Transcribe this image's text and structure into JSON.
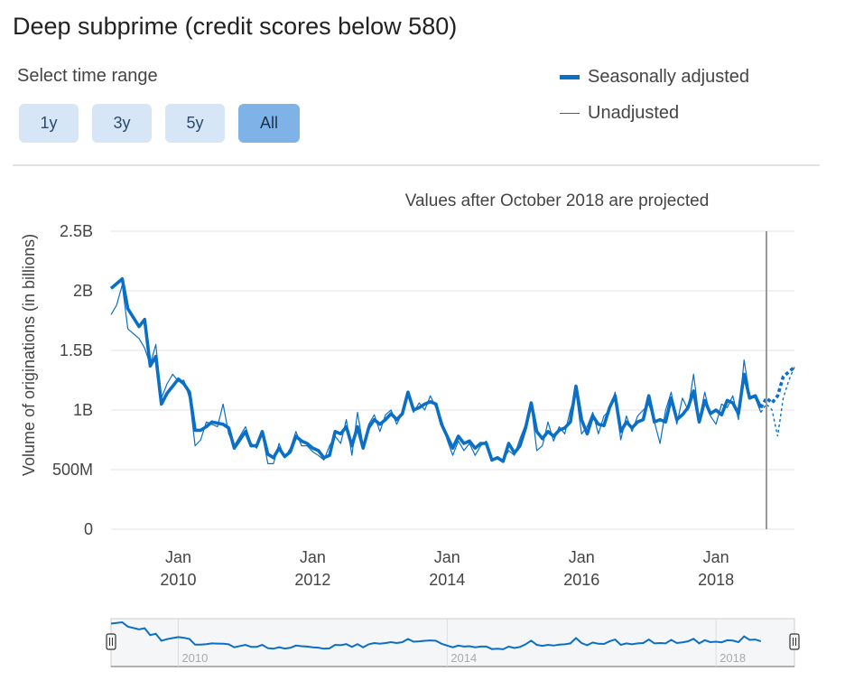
{
  "title": "Deep subprime (credit scores below 580)",
  "range_selector": {
    "label": "Select time range",
    "buttons": [
      "1y",
      "3y",
      "5y",
      "All"
    ],
    "active": "All"
  },
  "legend": {
    "seasonally_adjusted": "Seasonally adjusted",
    "unadjusted": "Unadjusted"
  },
  "note": "Values after October 2018 are projected",
  "colors": {
    "series": "#0b6fc6",
    "button": "#d6e6f7",
    "button_active": "#7fb3e8"
  },
  "chart_data": {
    "type": "line",
    "ylabel": "Volume of originations (in billions)",
    "ylim": [
      0,
      2.5
    ],
    "y_ticks": [
      {
        "value": 0,
        "label": "0"
      },
      {
        "value": 0.5,
        "label": "500M"
      },
      {
        "value": 1.0,
        "label": "1B"
      },
      {
        "value": 1.5,
        "label": "1.5B"
      },
      {
        "value": 2.0,
        "label": "2B"
      },
      {
        "value": 2.5,
        "label": "2.5B"
      }
    ],
    "x_ticks": [
      {
        "date": "2010-01",
        "month": "Jan",
        "year": "2010"
      },
      {
        "date": "2012-01",
        "month": "Jan",
        "year": "2012"
      },
      {
        "date": "2014-01",
        "month": "Jan",
        "year": "2014"
      },
      {
        "date": "2016-01",
        "month": "Jan",
        "year": "2016"
      },
      {
        "date": "2018-01",
        "month": "Jan",
        "year": "2018"
      }
    ],
    "xlim": [
      "2009-01",
      "2019-03"
    ],
    "projection_start": "2018-10",
    "navigator_labels": [
      "2010",
      "2014",
      "2018"
    ],
    "series": [
      {
        "name": "Seasonally adjusted",
        "points": [
          [
            "2009-01",
            2.02
          ],
          [
            "2009-03",
            2.1
          ],
          [
            "2009-04",
            1.85
          ],
          [
            "2009-06",
            1.7
          ],
          [
            "2009-07",
            1.76
          ],
          [
            "2009-08",
            1.37
          ],
          [
            "2009-09",
            1.45
          ],
          [
            "2009-10",
            1.05
          ],
          [
            "2009-11",
            1.14
          ],
          [
            "2009-12",
            1.2
          ],
          [
            "2010-01",
            1.26
          ],
          [
            "2010-02",
            1.22
          ],
          [
            "2010-03",
            1.15
          ],
          [
            "2010-04",
            0.83
          ],
          [
            "2010-05",
            0.83
          ],
          [
            "2010-06",
            0.86
          ],
          [
            "2010-07",
            0.9
          ],
          [
            "2010-08",
            0.89
          ],
          [
            "2010-09",
            0.88
          ],
          [
            "2010-10",
            0.85
          ],
          [
            "2010-11",
            0.68
          ],
          [
            "2010-12",
            0.75
          ],
          [
            "2011-01",
            0.82
          ],
          [
            "2011-02",
            0.7
          ],
          [
            "2011-03",
            0.7
          ],
          [
            "2011-04",
            0.82
          ],
          [
            "2011-05",
            0.63
          ],
          [
            "2011-06",
            0.6
          ],
          [
            "2011-07",
            0.68
          ],
          [
            "2011-08",
            0.61
          ],
          [
            "2011-09",
            0.65
          ],
          [
            "2011-10",
            0.78
          ],
          [
            "2011-11",
            0.74
          ],
          [
            "2011-12",
            0.72
          ],
          [
            "2012-01",
            0.68
          ],
          [
            "2012-02",
            0.66
          ],
          [
            "2012-03",
            0.6
          ],
          [
            "2012-04",
            0.62
          ],
          [
            "2012-05",
            0.82
          ],
          [
            "2012-06",
            0.8
          ],
          [
            "2012-07",
            0.86
          ],
          [
            "2012-08",
            0.7
          ],
          [
            "2012-09",
            0.86
          ],
          [
            "2012-10",
            0.68
          ],
          [
            "2012-11",
            0.85
          ],
          [
            "2012-12",
            0.92
          ],
          [
            "2013-01",
            0.88
          ],
          [
            "2013-02",
            0.92
          ],
          [
            "2013-03",
            0.97
          ],
          [
            "2013-04",
            0.92
          ],
          [
            "2013-05",
            0.97
          ],
          [
            "2013-06",
            1.15
          ],
          [
            "2013-07",
            1.0
          ],
          [
            "2013-08",
            1.02
          ],
          [
            "2013-09",
            1.05
          ],
          [
            "2013-10",
            1.07
          ],
          [
            "2013-11",
            1.05
          ],
          [
            "2013-12",
            0.88
          ],
          [
            "2014-01",
            0.78
          ],
          [
            "2014-02",
            0.68
          ],
          [
            "2014-03",
            0.78
          ],
          [
            "2014-04",
            0.72
          ],
          [
            "2014-05",
            0.74
          ],
          [
            "2014-06",
            0.68
          ],
          [
            "2014-07",
            0.72
          ],
          [
            "2014-08",
            0.72
          ],
          [
            "2014-09",
            0.58
          ],
          [
            "2014-10",
            0.6
          ],
          [
            "2014-11",
            0.57
          ],
          [
            "2014-12",
            0.72
          ],
          [
            "2015-01",
            0.64
          ],
          [
            "2015-02",
            0.7
          ],
          [
            "2015-03",
            0.85
          ],
          [
            "2015-04",
            1.06
          ],
          [
            "2015-05",
            0.82
          ],
          [
            "2015-06",
            0.76
          ],
          [
            "2015-07",
            0.82
          ],
          [
            "2015-08",
            0.78
          ],
          [
            "2015-09",
            0.83
          ],
          [
            "2015-10",
            0.85
          ],
          [
            "2015-11",
            0.9
          ],
          [
            "2015-12",
            1.2
          ],
          [
            "2016-01",
            0.92
          ],
          [
            "2016-02",
            0.8
          ],
          [
            "2016-03",
            0.95
          ],
          [
            "2016-04",
            0.88
          ],
          [
            "2016-05",
            0.87
          ],
          [
            "2016-06",
            1.02
          ],
          [
            "2016-07",
            1.12
          ],
          [
            "2016-08",
            0.82
          ],
          [
            "2016-09",
            0.9
          ],
          [
            "2016-10",
            0.85
          ],
          [
            "2016-11",
            0.9
          ],
          [
            "2016-12",
            0.92
          ],
          [
            "2017-01",
            1.12
          ],
          [
            "2017-02",
            0.9
          ],
          [
            "2017-03",
            0.92
          ],
          [
            "2017-04",
            0.9
          ],
          [
            "2017-05",
            1.1
          ],
          [
            "2017-06",
            0.92
          ],
          [
            "2017-07",
            0.96
          ],
          [
            "2017-08",
            1.02
          ],
          [
            "2017-09",
            1.16
          ],
          [
            "2017-10",
            0.9
          ],
          [
            "2017-11",
            1.08
          ],
          [
            "2017-12",
            0.97
          ],
          [
            "2018-01",
            1.0
          ],
          [
            "2018-02",
            0.96
          ],
          [
            "2018-03",
            1.08
          ],
          [
            "2018-04",
            1.06
          ],
          [
            "2018-05",
            0.97
          ],
          [
            "2018-06",
            1.3
          ],
          [
            "2018-07",
            1.1
          ],
          [
            "2018-08",
            1.12
          ],
          [
            "2018-09",
            1.02
          ]
        ]
      },
      {
        "name": "Unadjusted",
        "points": [
          [
            "2009-01",
            1.8
          ],
          [
            "2009-02",
            1.88
          ],
          [
            "2009-03",
            2.05
          ],
          [
            "2009-04",
            1.68
          ],
          [
            "2009-05",
            1.64
          ],
          [
            "2009-06",
            1.6
          ],
          [
            "2009-07",
            1.52
          ],
          [
            "2009-08",
            1.38
          ],
          [
            "2009-09",
            1.55
          ],
          [
            "2009-10",
            1.1
          ],
          [
            "2009-11",
            1.22
          ],
          [
            "2009-12",
            1.3
          ],
          [
            "2010-01",
            1.24
          ],
          [
            "2010-02",
            1.25
          ],
          [
            "2010-03",
            1.1
          ],
          [
            "2010-04",
            0.7
          ],
          [
            "2010-05",
            0.75
          ],
          [
            "2010-06",
            0.9
          ],
          [
            "2010-07",
            0.88
          ],
          [
            "2010-08",
            0.86
          ],
          [
            "2010-09",
            1.05
          ],
          [
            "2010-10",
            0.8
          ],
          [
            "2010-11",
            0.7
          ],
          [
            "2010-12",
            0.78
          ],
          [
            "2011-01",
            0.86
          ],
          [
            "2011-02",
            0.72
          ],
          [
            "2011-03",
            0.68
          ],
          [
            "2011-04",
            0.8
          ],
          [
            "2011-05",
            0.55
          ],
          [
            "2011-06",
            0.55
          ],
          [
            "2011-07",
            0.72
          ],
          [
            "2011-08",
            0.6
          ],
          [
            "2011-09",
            0.68
          ],
          [
            "2011-10",
            0.82
          ],
          [
            "2011-11",
            0.7
          ],
          [
            "2011-12",
            0.7
          ],
          [
            "2012-01",
            0.65
          ],
          [
            "2012-02",
            0.62
          ],
          [
            "2012-03",
            0.58
          ],
          [
            "2012-04",
            0.7
          ],
          [
            "2012-05",
            0.78
          ],
          [
            "2012-06",
            0.72
          ],
          [
            "2012-07",
            0.92
          ],
          [
            "2012-08",
            0.62
          ],
          [
            "2012-09",
            0.98
          ],
          [
            "2012-10",
            0.7
          ],
          [
            "2012-11",
            0.88
          ],
          [
            "2012-12",
            0.96
          ],
          [
            "2013-01",
            0.82
          ],
          [
            "2013-02",
            0.96
          ],
          [
            "2013-03",
            1.0
          ],
          [
            "2013-04",
            0.88
          ],
          [
            "2013-05",
            0.98
          ],
          [
            "2013-06",
            1.12
          ],
          [
            "2013-07",
            0.98
          ],
          [
            "2013-08",
            1.06
          ],
          [
            "2013-09",
            1.0
          ],
          [
            "2013-10",
            1.12
          ],
          [
            "2013-11",
            1.02
          ],
          [
            "2013-12",
            0.92
          ],
          [
            "2014-01",
            0.75
          ],
          [
            "2014-02",
            0.62
          ],
          [
            "2014-03",
            0.74
          ],
          [
            "2014-04",
            0.66
          ],
          [
            "2014-05",
            0.72
          ],
          [
            "2014-06",
            0.62
          ],
          [
            "2014-07",
            0.7
          ],
          [
            "2014-08",
            0.74
          ],
          [
            "2014-09",
            0.58
          ],
          [
            "2014-10",
            0.6
          ],
          [
            "2014-11",
            0.58
          ],
          [
            "2014-12",
            0.66
          ],
          [
            "2015-01",
            0.62
          ],
          [
            "2015-02",
            0.76
          ],
          [
            "2015-03",
            0.88
          ],
          [
            "2015-04",
            1.05
          ],
          [
            "2015-05",
            0.66
          ],
          [
            "2015-06",
            0.7
          ],
          [
            "2015-07",
            0.9
          ],
          [
            "2015-08",
            0.74
          ],
          [
            "2015-09",
            0.86
          ],
          [
            "2015-10",
            0.8
          ],
          [
            "2015-11",
            1.0
          ],
          [
            "2015-12",
            1.15
          ],
          [
            "2016-01",
            0.8
          ],
          [
            "2016-02",
            0.86
          ],
          [
            "2016-03",
            0.98
          ],
          [
            "2016-04",
            0.8
          ],
          [
            "2016-05",
            0.95
          ],
          [
            "2016-06",
            1.0
          ],
          [
            "2016-07",
            1.15
          ],
          [
            "2016-08",
            0.75
          ],
          [
            "2016-09",
            0.95
          ],
          [
            "2016-10",
            0.82
          ],
          [
            "2016-11",
            0.95
          ],
          [
            "2016-12",
            1.0
          ],
          [
            "2017-01",
            1.05
          ],
          [
            "2017-02",
            0.9
          ],
          [
            "2017-03",
            0.72
          ],
          [
            "2017-04",
            1.0
          ],
          [
            "2017-05",
            1.15
          ],
          [
            "2017-06",
            0.88
          ],
          [
            "2017-07",
            1.1
          ],
          [
            "2017-08",
            1.0
          ],
          [
            "2017-09",
            1.3
          ],
          [
            "2017-10",
            0.92
          ],
          [
            "2017-11",
            1.15
          ],
          [
            "2017-12",
            0.95
          ],
          [
            "2018-01",
            0.88
          ],
          [
            "2018-02",
            1.05
          ],
          [
            "2018-03",
            1.02
          ],
          [
            "2018-04",
            1.12
          ],
          [
            "2018-05",
            0.92
          ],
          [
            "2018-06",
            1.42
          ],
          [
            "2018-07",
            1.12
          ],
          [
            "2018-08",
            1.1
          ],
          [
            "2018-09",
            0.98
          ]
        ]
      }
    ],
    "projected_series": [
      {
        "name": "Seasonally adjusted",
        "points": [
          [
            "2018-09",
            1.02
          ],
          [
            "2018-10",
            1.1
          ],
          [
            "2018-11",
            1.06
          ],
          [
            "2018-12",
            1.12
          ],
          [
            "2019-01",
            1.28
          ],
          [
            "2019-02",
            1.32
          ],
          [
            "2019-03",
            1.36
          ]
        ]
      },
      {
        "name": "Unadjusted",
        "points": [
          [
            "2018-09",
            0.98
          ],
          [
            "2018-10",
            1.05
          ],
          [
            "2018-11",
            1.0
          ],
          [
            "2018-12",
            0.78
          ],
          [
            "2019-01",
            1.1
          ],
          [
            "2019-02",
            1.25
          ],
          [
            "2019-03",
            1.36
          ]
        ]
      }
    ]
  }
}
